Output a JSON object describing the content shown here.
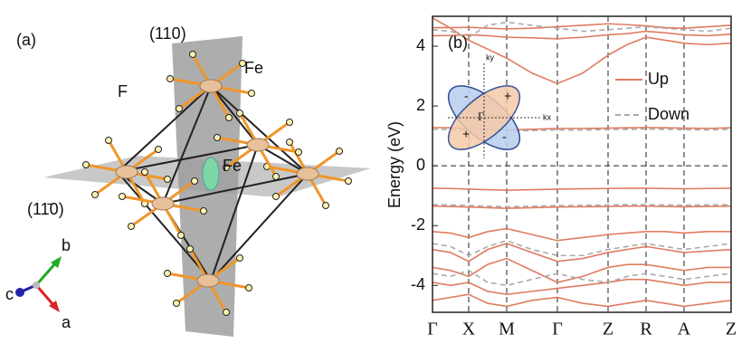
{
  "panel_a": {
    "label": "(a)",
    "plane_110": "(110)",
    "plane_1bar10": "(11̄0)",
    "atom_fe_top": "Fe",
    "atom_f": "F",
    "atom_fe_center": "Fe",
    "axis_a": "a",
    "axis_b": "b",
    "axis_c": "c"
  },
  "chart_data": {
    "type": "line",
    "label": "(b)",
    "ylabel": "Energy (eV)",
    "x": [
      0,
      20,
      40,
      61,
      82,
      110,
      138,
      166,
      194,
      215,
      236,
      257,
      278,
      304,
      330
    ],
    "xlim": [
      0,
      330
    ],
    "xticks": [
      {
        "value": 0,
        "label": "Γ"
      },
      {
        "value": 40,
        "label": "X"
      },
      {
        "value": 82,
        "label": "M"
      },
      {
        "value": 138,
        "label": "Γ"
      },
      {
        "value": 194,
        "label": "Z"
      },
      {
        "value": 236,
        "label": "R"
      },
      {
        "value": 278,
        "label": "A"
      },
      {
        "value": 330,
        "label": "Z"
      }
    ],
    "ylim": [
      -4.9,
      5.0
    ],
    "yticks": [
      -4,
      -2,
      0,
      2,
      4
    ],
    "grid": true,
    "series": [
      {
        "name": "Up",
        "color": "#e07b5f",
        "dashed": false,
        "bands": [
          [
            4.62,
            4.62,
            4.63,
            4.6,
            4.58,
            4.6,
            4.65,
            4.7,
            4.75,
            4.72,
            4.68,
            4.62,
            4.6,
            4.65,
            4.7
          ],
          [
            4.35,
            4.36,
            4.38,
            4.35,
            4.3,
            4.28,
            4.25,
            4.3,
            4.38,
            4.42,
            4.5,
            4.45,
            4.38,
            4.35,
            4.4
          ],
          [
            4.95,
            4.6,
            4.2,
            3.9,
            3.6,
            3.1,
            2.75,
            3.1,
            3.7,
            4.05,
            4.3,
            4.2,
            4.1,
            4.05,
            4.1
          ],
          [
            1.28,
            1.27,
            1.25,
            1.22,
            1.2,
            1.22,
            1.25,
            1.25,
            1.26,
            1.27,
            1.28,
            1.27,
            1.26,
            1.25,
            1.27
          ],
          [
            -0.75,
            -0.76,
            -0.78,
            -0.8,
            -0.82,
            -0.8,
            -0.78,
            -0.77,
            -0.76,
            -0.75,
            -0.75,
            -0.76,
            -0.77,
            -0.76,
            -0.75
          ],
          [
            -1.35,
            -1.36,
            -1.38,
            -1.4,
            -1.42,
            -1.4,
            -1.38,
            -1.37,
            -1.36,
            -1.35,
            -1.35,
            -1.36,
            -1.37,
            -1.36,
            -1.35
          ],
          [
            -2.2,
            -2.25,
            -2.4,
            -2.2,
            -2.1,
            -2.3,
            -2.5,
            -2.4,
            -2.3,
            -2.25,
            -2.2,
            -2.2,
            -2.25,
            -2.2,
            -2.2
          ],
          [
            -2.8,
            -2.9,
            -3.2,
            -2.8,
            -2.6,
            -2.9,
            -3.2,
            -3.1,
            -2.9,
            -2.8,
            -2.7,
            -2.8,
            -2.9,
            -2.85,
            -2.8
          ],
          [
            -3.4,
            -3.5,
            -3.7,
            -3.3,
            -3.1,
            -3.5,
            -3.9,
            -3.7,
            -3.4,
            -3.3,
            -3.3,
            -3.4,
            -3.5,
            -3.4,
            -3.4
          ],
          [
            -3.9,
            -4.0,
            -3.9,
            -4.2,
            -4.3,
            -4.2,
            -4.1,
            -4.0,
            -3.9,
            -3.8,
            -3.8,
            -3.9,
            -4.0,
            -3.9,
            -3.9
          ],
          [
            -4.5,
            -4.4,
            -4.3,
            -4.6,
            -4.7,
            -4.5,
            -4.4,
            -4.6,
            -4.7,
            -4.6,
            -4.5,
            -4.6,
            -4.7,
            -4.6,
            -4.5
          ]
        ]
      },
      {
        "name": "Down",
        "color": "#aaaaaa",
        "dashed": true,
        "bands": [
          [
            4.55,
            4.5,
            4.3,
            4.7,
            4.8,
            4.7,
            4.6,
            4.5,
            4.55,
            4.6,
            4.65,
            4.6,
            4.55,
            4.5,
            4.6
          ],
          [
            1.22,
            1.21,
            1.2,
            1.18,
            1.16,
            1.18,
            1.2,
            1.2,
            1.21,
            1.22,
            1.23,
            1.22,
            1.21,
            1.2,
            1.22
          ],
          [
            -1.3,
            -1.31,
            -1.33,
            -1.35,
            -1.37,
            -1.35,
            -1.33,
            -1.32,
            -1.31,
            -1.3,
            -1.3,
            -1.31,
            -1.32,
            -1.31,
            -1.3
          ],
          [
            -2.6,
            -2.7,
            -3.0,
            -2.7,
            -2.5,
            -2.8,
            -3.0,
            -3.0,
            -2.8,
            -2.7,
            -2.6,
            -2.7,
            -2.8,
            -2.7,
            -2.6
          ],
          [
            -3.6,
            -3.7,
            -3.5,
            -3.9,
            -4.0,
            -3.8,
            -3.6,
            -3.8,
            -3.9,
            -3.7,
            -3.6,
            -3.7,
            -3.8,
            -3.7,
            -3.6
          ]
        ]
      }
    ],
    "legend": "upper right",
    "inset": {
      "ky": "ky",
      "kx": "kx",
      "center": "Γ",
      "sign_1": "-",
      "sign_2": "+",
      "sign_3": "+",
      "sign_4": "-"
    }
  }
}
